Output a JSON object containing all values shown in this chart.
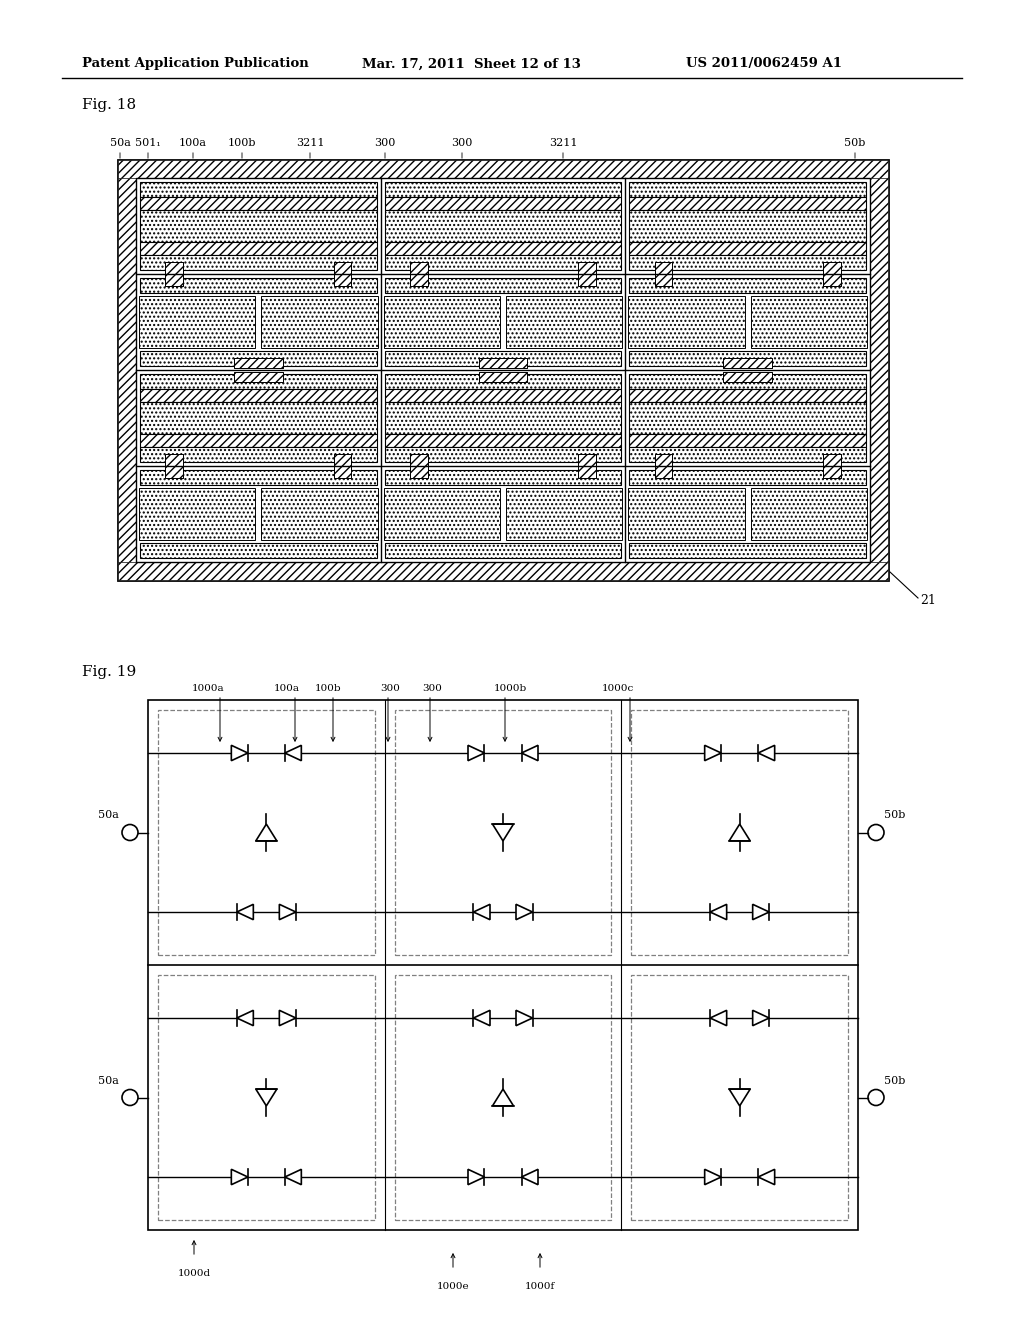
{
  "bg_color": "#ffffff",
  "header1": "Patent Application Publication",
  "header2": "Mar. 17, 2011  Sheet 12 of 13",
  "header3": "US 2011/0062459 A1",
  "fig18_title": "Fig. 18",
  "fig19_title": "Fig. 19"
}
